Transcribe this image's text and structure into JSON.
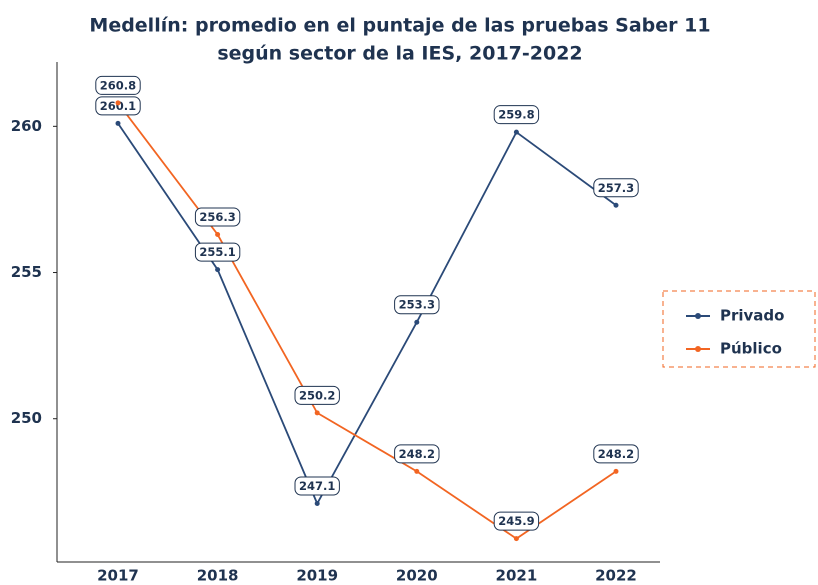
{
  "chart_data": {
    "type": "line",
    "title": [
      "Medellín: promedio en el puntaje de las pruebas Saber 11",
      "según sector de la IES, 2017-2022"
    ],
    "categories": [
      "2017",
      "2018",
      "2019",
      "2020",
      "2021",
      "2022"
    ],
    "series": [
      {
        "name": "Privado",
        "color": "#2b4a78",
        "values": [
          260.1,
          255.1,
          247.1,
          253.3,
          259.8,
          257.3
        ]
      },
      {
        "name": "Público",
        "color": "#f26522",
        "values": [
          260.8,
          256.3,
          250.2,
          248.2,
          245.9,
          248.2
        ]
      }
    ],
    "ylim": [
      245.1,
      262.2
    ],
    "yticks": [
      250,
      255,
      260
    ],
    "legend": "right"
  }
}
